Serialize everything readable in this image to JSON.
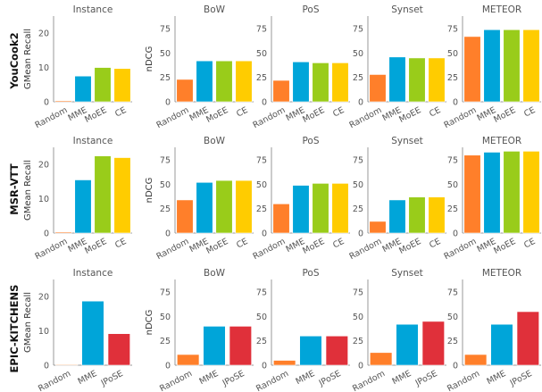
{
  "colors": {
    "orange": "#ff7f2a",
    "blue": "#00a5d9",
    "green": "#99cc1a",
    "yellow": "#ffcc00",
    "red": "#e0303a",
    "axis": "#999999"
  },
  "chart_data": [
    {
      "row_label": "YouCook2",
      "panels": [
        {
          "type": "bar",
          "title": "Instance",
          "ylabel": "GMean Recall",
          "ylim": [
            0,
            25
          ],
          "yticks": [
            "0",
            "10",
            "20"
          ],
          "categories": [
            "Random",
            "MME",
            "MoEE",
            "CE"
          ],
          "values": [
            0.3,
            7.5,
            10.0,
            9.7
          ],
          "colors": [
            "#ff7f2a",
            "#00a5d9",
            "#99cc1a",
            "#ffcc00"
          ]
        },
        {
          "type": "bar",
          "title": "BoW",
          "ylabel": "nDCG",
          "ylim": [
            0,
            88
          ],
          "yticks": [
            "0",
            "25",
            "50",
            "75"
          ],
          "categories": [
            "Random",
            "MME",
            "MoEE",
            "CE"
          ],
          "values": [
            23,
            42,
            42,
            42
          ],
          "colors": [
            "#ff7f2a",
            "#00a5d9",
            "#99cc1a",
            "#ffcc00"
          ]
        },
        {
          "type": "bar",
          "title": "PoS",
          "ylabel": "",
          "ylim": [
            0,
            88
          ],
          "yticks": [
            "0",
            "25",
            "50",
            "75"
          ],
          "categories": [
            "Random",
            "MME",
            "MoEE",
            "CE"
          ],
          "values": [
            22,
            41,
            40,
            40
          ],
          "colors": [
            "#ff7f2a",
            "#00a5d9",
            "#99cc1a",
            "#ffcc00"
          ]
        },
        {
          "type": "bar",
          "title": "Synset",
          "ylabel": "",
          "ylim": [
            0,
            88
          ],
          "yticks": [
            "0",
            "25",
            "50",
            "75"
          ],
          "categories": [
            "Random",
            "MME",
            "MoEE",
            "CE"
          ],
          "values": [
            28,
            46,
            45,
            45
          ],
          "colors": [
            "#ff7f2a",
            "#00a5d9",
            "#99cc1a",
            "#ffcc00"
          ]
        },
        {
          "type": "bar",
          "title": "METEOR",
          "ylabel": "",
          "ylim": [
            0,
            88
          ],
          "yticks": [
            "0",
            "25",
            "50",
            "75"
          ],
          "categories": [
            "Random",
            "MME",
            "MoEE",
            "CE"
          ],
          "values": [
            67,
            74,
            74,
            74
          ],
          "colors": [
            "#ff7f2a",
            "#00a5d9",
            "#99cc1a",
            "#ffcc00"
          ]
        }
      ]
    },
    {
      "row_label": "MSR-VTT",
      "panels": [
        {
          "type": "bar",
          "title": "Instance",
          "ylabel": "GMean Recall",
          "ylim": [
            0,
            25
          ],
          "yticks": [
            "0",
            "10",
            "20"
          ],
          "categories": [
            "Random",
            "MME",
            "MoEE",
            "CE"
          ],
          "values": [
            0.3,
            15.5,
            22.5,
            22.0
          ],
          "colors": [
            "#ff7f2a",
            "#00a5d9",
            "#99cc1a",
            "#ffcc00"
          ]
        },
        {
          "type": "bar",
          "title": "BoW",
          "ylabel": "nDCG",
          "ylim": [
            0,
            88
          ],
          "yticks": [
            "0",
            "25",
            "50",
            "75"
          ],
          "categories": [
            "Random",
            "MME",
            "MoEE",
            "CE"
          ],
          "values": [
            34,
            52,
            54,
            54
          ],
          "colors": [
            "#ff7f2a",
            "#00a5d9",
            "#99cc1a",
            "#ffcc00"
          ]
        },
        {
          "type": "bar",
          "title": "PoS",
          "ylabel": "",
          "ylim": [
            0,
            88
          ],
          "yticks": [
            "0",
            "25",
            "50",
            "75"
          ],
          "categories": [
            "Random",
            "MME",
            "MoEE",
            "CE"
          ],
          "values": [
            30,
            49,
            51,
            51
          ],
          "colors": [
            "#ff7f2a",
            "#00a5d9",
            "#99cc1a",
            "#ffcc00"
          ]
        },
        {
          "type": "bar",
          "title": "Synset",
          "ylabel": "",
          "ylim": [
            0,
            88
          ],
          "yticks": [
            "0",
            "25",
            "50",
            "75"
          ],
          "categories": [
            "Random",
            "MME",
            "MoEE",
            "CE"
          ],
          "values": [
            12,
            34,
            37,
            37
          ],
          "colors": [
            "#ff7f2a",
            "#00a5d9",
            "#99cc1a",
            "#ffcc00"
          ]
        },
        {
          "type": "bar",
          "title": "METEOR",
          "ylabel": "",
          "ylim": [
            0,
            88
          ],
          "yticks": [
            "0",
            "25",
            "50",
            "75"
          ],
          "categories": [
            "Random",
            "MME",
            "MoEE",
            "CE"
          ],
          "values": [
            80,
            83,
            84,
            84
          ],
          "colors": [
            "#ff7f2a",
            "#00a5d9",
            "#99cc1a",
            "#ffcc00"
          ]
        }
      ]
    },
    {
      "row_label": "EPIC-KITCHENS",
      "panels": [
        {
          "type": "bar",
          "title": "Instance",
          "ylabel": "GMean Recall",
          "ylim": [
            0,
            25
          ],
          "yticks": [
            "0",
            "10",
            "20"
          ],
          "categories": [
            "Random",
            "MME",
            "JPoSE"
          ],
          "values": [
            0.2,
            18.7,
            9.2
          ],
          "colors": [
            "#ff7f2a",
            "#00a5d9",
            "#e0303a"
          ]
        },
        {
          "type": "bar",
          "title": "BoW",
          "ylabel": "nDCG",
          "ylim": [
            0,
            88
          ],
          "yticks": [
            "0",
            "25",
            "50",
            "75"
          ],
          "categories": [
            "Random",
            "MME",
            "JPoSE"
          ],
          "values": [
            11,
            40,
            40
          ],
          "colors": [
            "#ff7f2a",
            "#00a5d9",
            "#e0303a"
          ]
        },
        {
          "type": "bar",
          "title": "PoS",
          "ylabel": "",
          "ylim": [
            0,
            88
          ],
          "yticks": [
            "0",
            "25",
            "50",
            "75"
          ],
          "categories": [
            "Random",
            "MME",
            "JPoSE"
          ],
          "values": [
            5,
            30,
            30
          ],
          "colors": [
            "#ff7f2a",
            "#00a5d9",
            "#e0303a"
          ]
        },
        {
          "type": "bar",
          "title": "Synset",
          "ylabel": "",
          "ylim": [
            0,
            88
          ],
          "yticks": [
            "0",
            "25",
            "50",
            "75"
          ],
          "categories": [
            "Random",
            "MME",
            "JPoSE"
          ],
          "values": [
            13,
            42,
            45
          ],
          "colors": [
            "#ff7f2a",
            "#00a5d9",
            "#e0303a"
          ]
        },
        {
          "type": "bar",
          "title": "METEOR",
          "ylabel": "",
          "ylim": [
            0,
            88
          ],
          "yticks": [
            "0",
            "25",
            "50",
            "75"
          ],
          "categories": [
            "Random",
            "MME",
            "JPoSE"
          ],
          "values": [
            11,
            42,
            55
          ],
          "colors": [
            "#ff7f2a",
            "#00a5d9",
            "#e0303a"
          ]
        }
      ]
    }
  ]
}
